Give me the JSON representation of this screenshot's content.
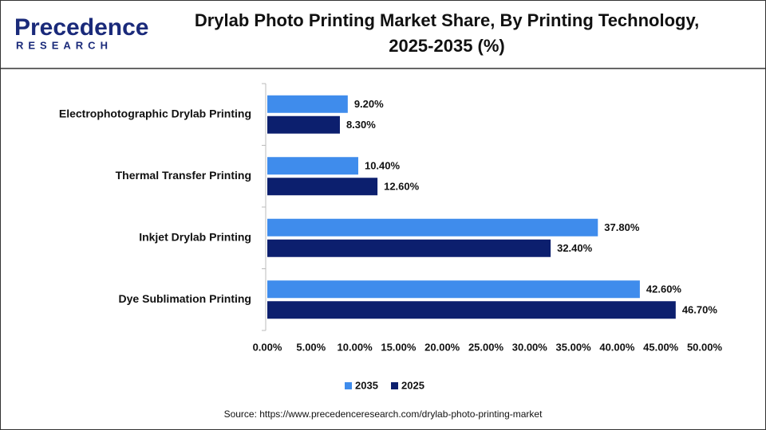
{
  "logo": {
    "name": "Precedence",
    "tagline": "RESEARCH"
  },
  "chart_data": {
    "type": "hbar",
    "title": [
      "Drylab Photo Printing Market Share, By Printing Technology,",
      "2025-2035 (%)"
    ],
    "categories": [
      "Electrophotographic Drylab Printing",
      "Thermal Transfer Printing",
      "Inkjet Drylab Printing",
      "Dye Sublimation Printing"
    ],
    "series": [
      {
        "name": "2035",
        "color": "#3f8cec",
        "values": [
          9.2,
          10.4,
          37.8,
          42.6
        ],
        "value_labels": [
          "9.20%",
          "10.40%",
          "37.80%",
          "42.60%"
        ]
      },
      {
        "name": "2025",
        "color": "#0c1f6e",
        "values": [
          8.3,
          12.6,
          32.4,
          46.7
        ],
        "value_labels": [
          "8.30%",
          "12.60%",
          "32.40%",
          "46.70%"
        ]
      }
    ],
    "xlim": [
      0,
      50
    ],
    "xticks": [
      {
        "value": 0,
        "label": "0.00%"
      },
      {
        "value": 5,
        "label": "5.00%"
      },
      {
        "value": 10,
        "label": "10.00%"
      },
      {
        "value": 15,
        "label": "15.00%"
      },
      {
        "value": 20,
        "label": "20.00%"
      },
      {
        "value": 25,
        "label": "25.00%"
      },
      {
        "value": 30,
        "label": "30.00%"
      },
      {
        "value": 35,
        "label": "35.00%"
      },
      {
        "value": 40,
        "label": "40.00%"
      },
      {
        "value": 45,
        "label": "45.00%"
      },
      {
        "value": 50,
        "label": "50.00%"
      }
    ],
    "grid": false,
    "legend": "bottom",
    "source": "Source: https://www.precedenceresearch.com/drylab-photo-printing-market"
  }
}
